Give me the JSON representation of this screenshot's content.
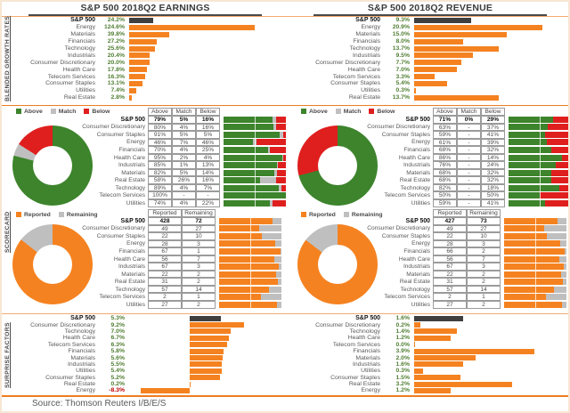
{
  "sections": {
    "growth": "BLENDED GROWTH RATES",
    "scorecard": "SCORECARD",
    "surprise": "SURPRISE FACTORS"
  },
  "source": "Source: Thomson Reuters I/B/E/S",
  "legends": {
    "above": "Above",
    "match": "Match",
    "below": "Below",
    "reported": "Reported",
    "remaining": "Remaining"
  },
  "colors": {
    "orange": "#F58220",
    "dark_bar": "#3F3F3F",
    "green": "#3D842C",
    "red": "#DF1F1E",
    "gray": "#BFBFBF",
    "value_green": "#507E32",
    "value_red": "#C00000"
  },
  "chart_data": [
    {
      "id": "earnings_growth",
      "type": "bar",
      "title": "S&P 500 2018Q2 EARNINGS",
      "unit": "%",
      "categories": [
        "S&P 500",
        "Energy",
        "Materials",
        "Financials",
        "Technology",
        "Industrials",
        "Consumer Discretionary",
        "Health Care",
        "Telecom Services",
        "Consumer Staples",
        "Utilities",
        "Real Estate"
      ],
      "values": [
        24.2,
        124.6,
        39.8,
        27.2,
        25.6,
        20.4,
        20.0,
        17.8,
        16.3,
        13.1,
        7.4,
        2.8
      ]
    },
    {
      "id": "earnings_beat_scorecard",
      "type": "table",
      "columns": [
        "Above",
        "Match",
        "Below"
      ],
      "unit": "%",
      "categories": [
        "S&P 500",
        "Consumer Discretionary",
        "Consumer Staples",
        "Energy",
        "Financials",
        "Health Care",
        "Industrials",
        "Materials",
        "Real Estate",
        "Technology",
        "Telecom Services",
        "Utilities"
      ],
      "series": [
        {
          "name": "Above",
          "values": [
            79,
            80,
            91,
            46,
            70,
            95,
            85,
            82,
            58,
            89,
            100,
            74
          ]
        },
        {
          "name": "Match",
          "values": [
            5,
            4,
            5,
            7,
            4,
            2,
            1,
            5,
            26,
            4,
            null,
            4
          ]
        },
        {
          "name": "Below",
          "values": [
            16,
            16,
            5,
            46,
            25,
            4,
            13,
            14,
            16,
            7,
            null,
            22
          ]
        }
      ]
    },
    {
      "id": "earnings_reported_scorecard",
      "type": "table",
      "columns": [
        "Reported",
        "Remaining"
      ],
      "categories": [
        "S&P 500",
        "Consumer Discretionary",
        "Consumer Staples",
        "Energy",
        "Financials",
        "Health Care",
        "Industrials",
        "Materials",
        "Real Estate",
        "Technology",
        "Telecom Services",
        "Utilities"
      ],
      "series": [
        {
          "name": "Reported",
          "values": [
            428,
            49,
            22,
            28,
            67,
            56,
            67,
            22,
            31,
            57,
            2,
            27
          ]
        },
        {
          "name": "Remaining",
          "values": [
            72,
            27,
            10,
            3,
            1,
            7,
            3,
            2,
            2,
            14,
            1,
            2
          ]
        }
      ]
    },
    {
      "id": "earnings_surprise",
      "type": "bar",
      "unit": "%",
      "categories": [
        "S&P 500",
        "Consumer Discretionary",
        "Technology",
        "Health Care",
        "Telecom Services",
        "Financials",
        "Materials",
        "Industrials",
        "Utilities",
        "Consumer Staples",
        "Real Estate",
        "Energy"
      ],
      "values": [
        5.3,
        9.2,
        7.0,
        6.7,
        6.3,
        5.8,
        5.6,
        5.5,
        5.4,
        5.2,
        0.2,
        -8.3
      ]
    },
    {
      "id": "revenue_growth",
      "type": "bar",
      "title": "S&P 500 2018Q2 REVENUE",
      "unit": "%",
      "categories": [
        "S&P 500",
        "Energy",
        "Materials",
        "Financials",
        "Technology",
        "Industrials",
        "Consumer Discretionary",
        "Health Care",
        "Telecom Services",
        "Consumer Staples",
        "Utilities",
        "Real Estate"
      ],
      "values": [
        9.3,
        20.9,
        15.0,
        8.0,
        13.7,
        9.5,
        7.7,
        7.0,
        3.3,
        5.4,
        0.3,
        13.7
      ]
    },
    {
      "id": "revenue_beat_scorecard",
      "type": "table",
      "columns": [
        "Above",
        "Match",
        "Below"
      ],
      "unit": "%",
      "categories": [
        "S&P 500",
        "Consumer Discretionary",
        "Consumer Staples",
        "Energy",
        "Financials",
        "Health Care",
        "Industrials",
        "Materials",
        "Real Estate",
        "Technology",
        "Telecom Services",
        "Utilities"
      ],
      "series": [
        {
          "name": "Above",
          "values": [
            71,
            63,
            59,
            61,
            68,
            86,
            76,
            68,
            68,
            82,
            50,
            59
          ]
        },
        {
          "name": "Match",
          "values": [
            0,
            null,
            null,
            null,
            null,
            null,
            null,
            null,
            null,
            null,
            null,
            null
          ]
        },
        {
          "name": "Below",
          "values": [
            29,
            37,
            41,
            39,
            32,
            14,
            24,
            32,
            32,
            18,
            50,
            41
          ]
        }
      ]
    },
    {
      "id": "revenue_reported_scorecard",
      "type": "table",
      "columns": [
        "Reported",
        "Remaining"
      ],
      "categories": [
        "S&P 500",
        "Consumer Discretionary",
        "Consumer Staples",
        "Energy",
        "Financials",
        "Health Care",
        "Industrials",
        "Materials",
        "Real Estate",
        "Technology",
        "Telecom Services",
        "Utilities"
      ],
      "series": [
        {
          "name": "Reported",
          "values": [
            427,
            49,
            22,
            28,
            66,
            56,
            67,
            22,
            31,
            57,
            2,
            27
          ]
        },
        {
          "name": "Remaining",
          "values": [
            73,
            27,
            10,
            3,
            2,
            7,
            3,
            2,
            2,
            14,
            1,
            2
          ]
        }
      ]
    },
    {
      "id": "revenue_surprise",
      "type": "bar",
      "unit": "%",
      "categories": [
        "S&P 500",
        "Consumer Discretionary",
        "Technology",
        "Health Care",
        "Telecom Services",
        "Financials",
        "Materials",
        "Industrials",
        "Utilities",
        "Consumer Staples",
        "Real Estate",
        "Energy"
      ],
      "values": [
        1.6,
        0.2,
        1.4,
        1.2,
        0.0,
        3.9,
        2.0,
        1.6,
        0.3,
        1.5,
        3.2,
        1.2
      ]
    }
  ]
}
